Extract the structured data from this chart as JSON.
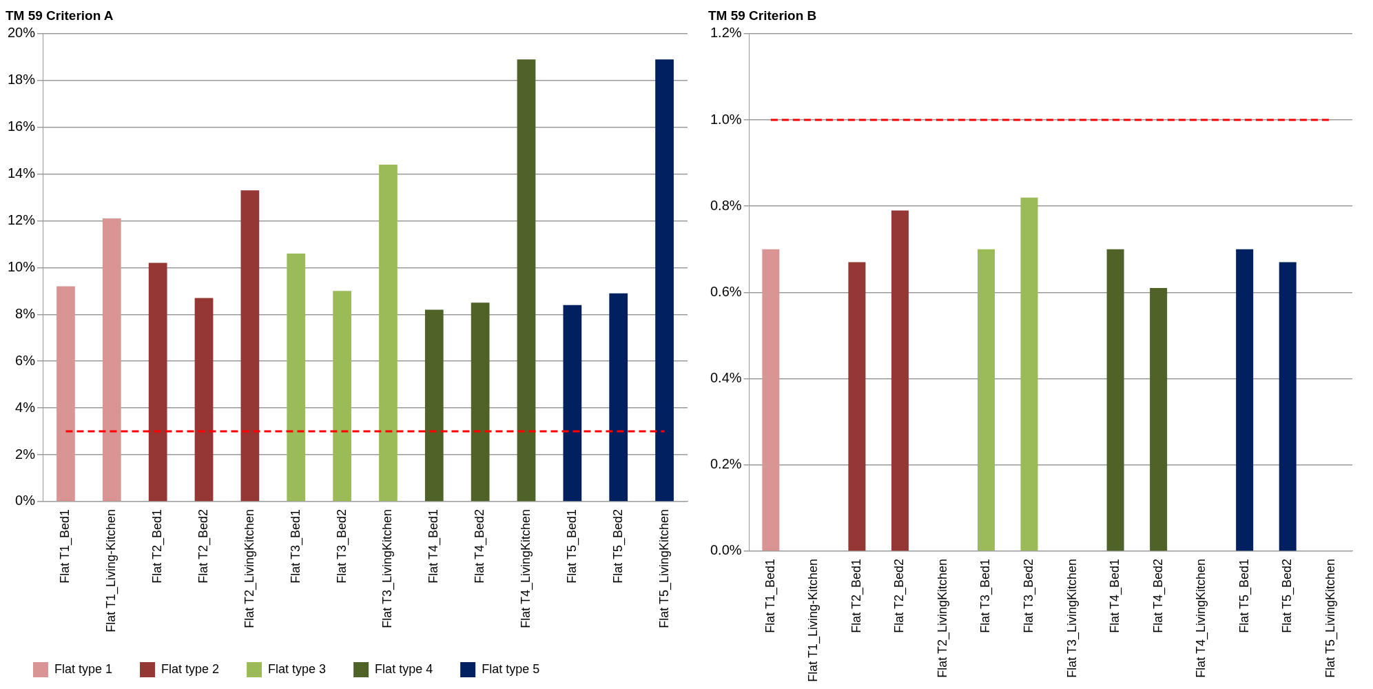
{
  "chart_data": [
    {
      "type": "bar",
      "title": "TM 59 Criterion A",
      "categories": [
        "Flat T1_Bed1",
        "Flat T1_Living-Kitchen",
        "Flat T2_Bed1",
        "Flat T2_Bed2",
        "Flat T2_LivingKitchen",
        "Flat T3_Bed1",
        "Flat T3_Bed2",
        "Flat T3_LivingKitchen",
        "Flat T4_Bed1",
        "Flat T4_Bed2",
        "Flat T4_LivingKitchen",
        "Flat T5_Bed1",
        "Flat T5_Bed2",
        "Flat T5_LivingKitchen"
      ],
      "series": [
        {
          "name": "Flat type 1",
          "color": "#d99594",
          "values": [
            9.2,
            12.1,
            null,
            null,
            null,
            null,
            null,
            null,
            null,
            null,
            null,
            null,
            null,
            null
          ]
        },
        {
          "name": "Flat type 2",
          "color": "#953735",
          "values": [
            null,
            null,
            10.2,
            8.7,
            13.3,
            null,
            null,
            null,
            null,
            null,
            null,
            null,
            null,
            null
          ]
        },
        {
          "name": "Flat type 3",
          "color": "#9bbb59",
          "values": [
            null,
            null,
            null,
            null,
            null,
            10.6,
            9.0,
            14.4,
            null,
            null,
            null,
            null,
            null,
            null
          ]
        },
        {
          "name": "Flat type 4",
          "color": "#4f6228",
          "values": [
            null,
            null,
            null,
            null,
            null,
            null,
            null,
            null,
            8.2,
            8.5,
            18.9,
            null,
            null,
            null
          ]
        },
        {
          "name": "Flat type 5",
          "color": "#002060",
          "values": [
            null,
            null,
            null,
            null,
            null,
            null,
            null,
            null,
            null,
            null,
            null,
            8.4,
            8.9,
            18.9
          ]
        }
      ],
      "ylim": [
        0,
        20
      ],
      "yticks": [
        {
          "value": 0,
          "label": "0%"
        },
        {
          "value": 2,
          "label": "2%"
        },
        {
          "value": 4,
          "label": "4%"
        },
        {
          "value": 6,
          "label": "6%"
        },
        {
          "value": 8,
          "label": "8%"
        },
        {
          "value": 10,
          "label": "10%"
        },
        {
          "value": 12,
          "label": "12%"
        },
        {
          "value": 14,
          "label": "14%"
        },
        {
          "value": 16,
          "label": "16%"
        },
        {
          "value": 18,
          "label": "18%"
        },
        {
          "value": 20,
          "label": "20%"
        }
      ],
      "grid": "y",
      "legend": "bottom",
      "ref_lines": [
        {
          "axis": "y",
          "value": 3,
          "color": "#ff0000",
          "line_style": "dashed"
        }
      ]
    },
    {
      "type": "bar",
      "title": "TM 59 Criterion B",
      "categories": [
        "Flat T1_Bed1",
        "Flat T1_Living-Kitchen",
        "Flat T2_Bed1",
        "Flat T2_Bed2",
        "Flat T2_LivingKitchen",
        "Flat T3_Bed1",
        "Flat T3_Bed2",
        "Flat T3_LivingKitchen",
        "Flat T4_Bed1",
        "Flat T4_Bed2",
        "Flat T4_LivingKitchen",
        "Flat T5_Bed1",
        "Flat T5_Bed2",
        "Flat T5_LivingKitchen"
      ],
      "series": [
        {
          "color": "#d99594",
          "values": [
            0.7,
            null,
            null,
            null,
            null,
            null,
            null,
            null,
            null,
            null,
            null,
            null,
            null,
            null
          ]
        },
        {
          "color": "#953735",
          "values": [
            null,
            null,
            0.67,
            0.79,
            null,
            null,
            null,
            null,
            null,
            null,
            null,
            null,
            null,
            null
          ]
        },
        {
          "color": "#9bbb59",
          "values": [
            null,
            null,
            null,
            null,
            null,
            0.7,
            0.82,
            null,
            null,
            null,
            null,
            null,
            null,
            null
          ]
        },
        {
          "color": "#4f6228",
          "values": [
            null,
            null,
            null,
            null,
            null,
            null,
            null,
            null,
            0.7,
            0.61,
            null,
            null,
            null,
            null
          ]
        },
        {
          "color": "#002060",
          "values": [
            null,
            null,
            null,
            null,
            null,
            null,
            null,
            null,
            null,
            null,
            null,
            0.7,
            0.67,
            null
          ]
        }
      ],
      "ylim": [
        0,
        1.2
      ],
      "yticks": [
        {
          "value": 0,
          "label": "0.0%"
        },
        {
          "value": 0.2,
          "label": "0.2%"
        },
        {
          "value": 0.4,
          "label": "0.4%"
        },
        {
          "value": 0.6,
          "label": "0.6%"
        },
        {
          "value": 0.8,
          "label": "0.8%"
        },
        {
          "value": 1.0,
          "label": "1.0%"
        },
        {
          "value": 1.2,
          "label": "1.2%"
        }
      ],
      "grid": "y",
      "ref_lines": [
        {
          "axis": "y",
          "value": 1.0,
          "color": "#ff0000",
          "line_style": "dashed"
        }
      ]
    }
  ]
}
